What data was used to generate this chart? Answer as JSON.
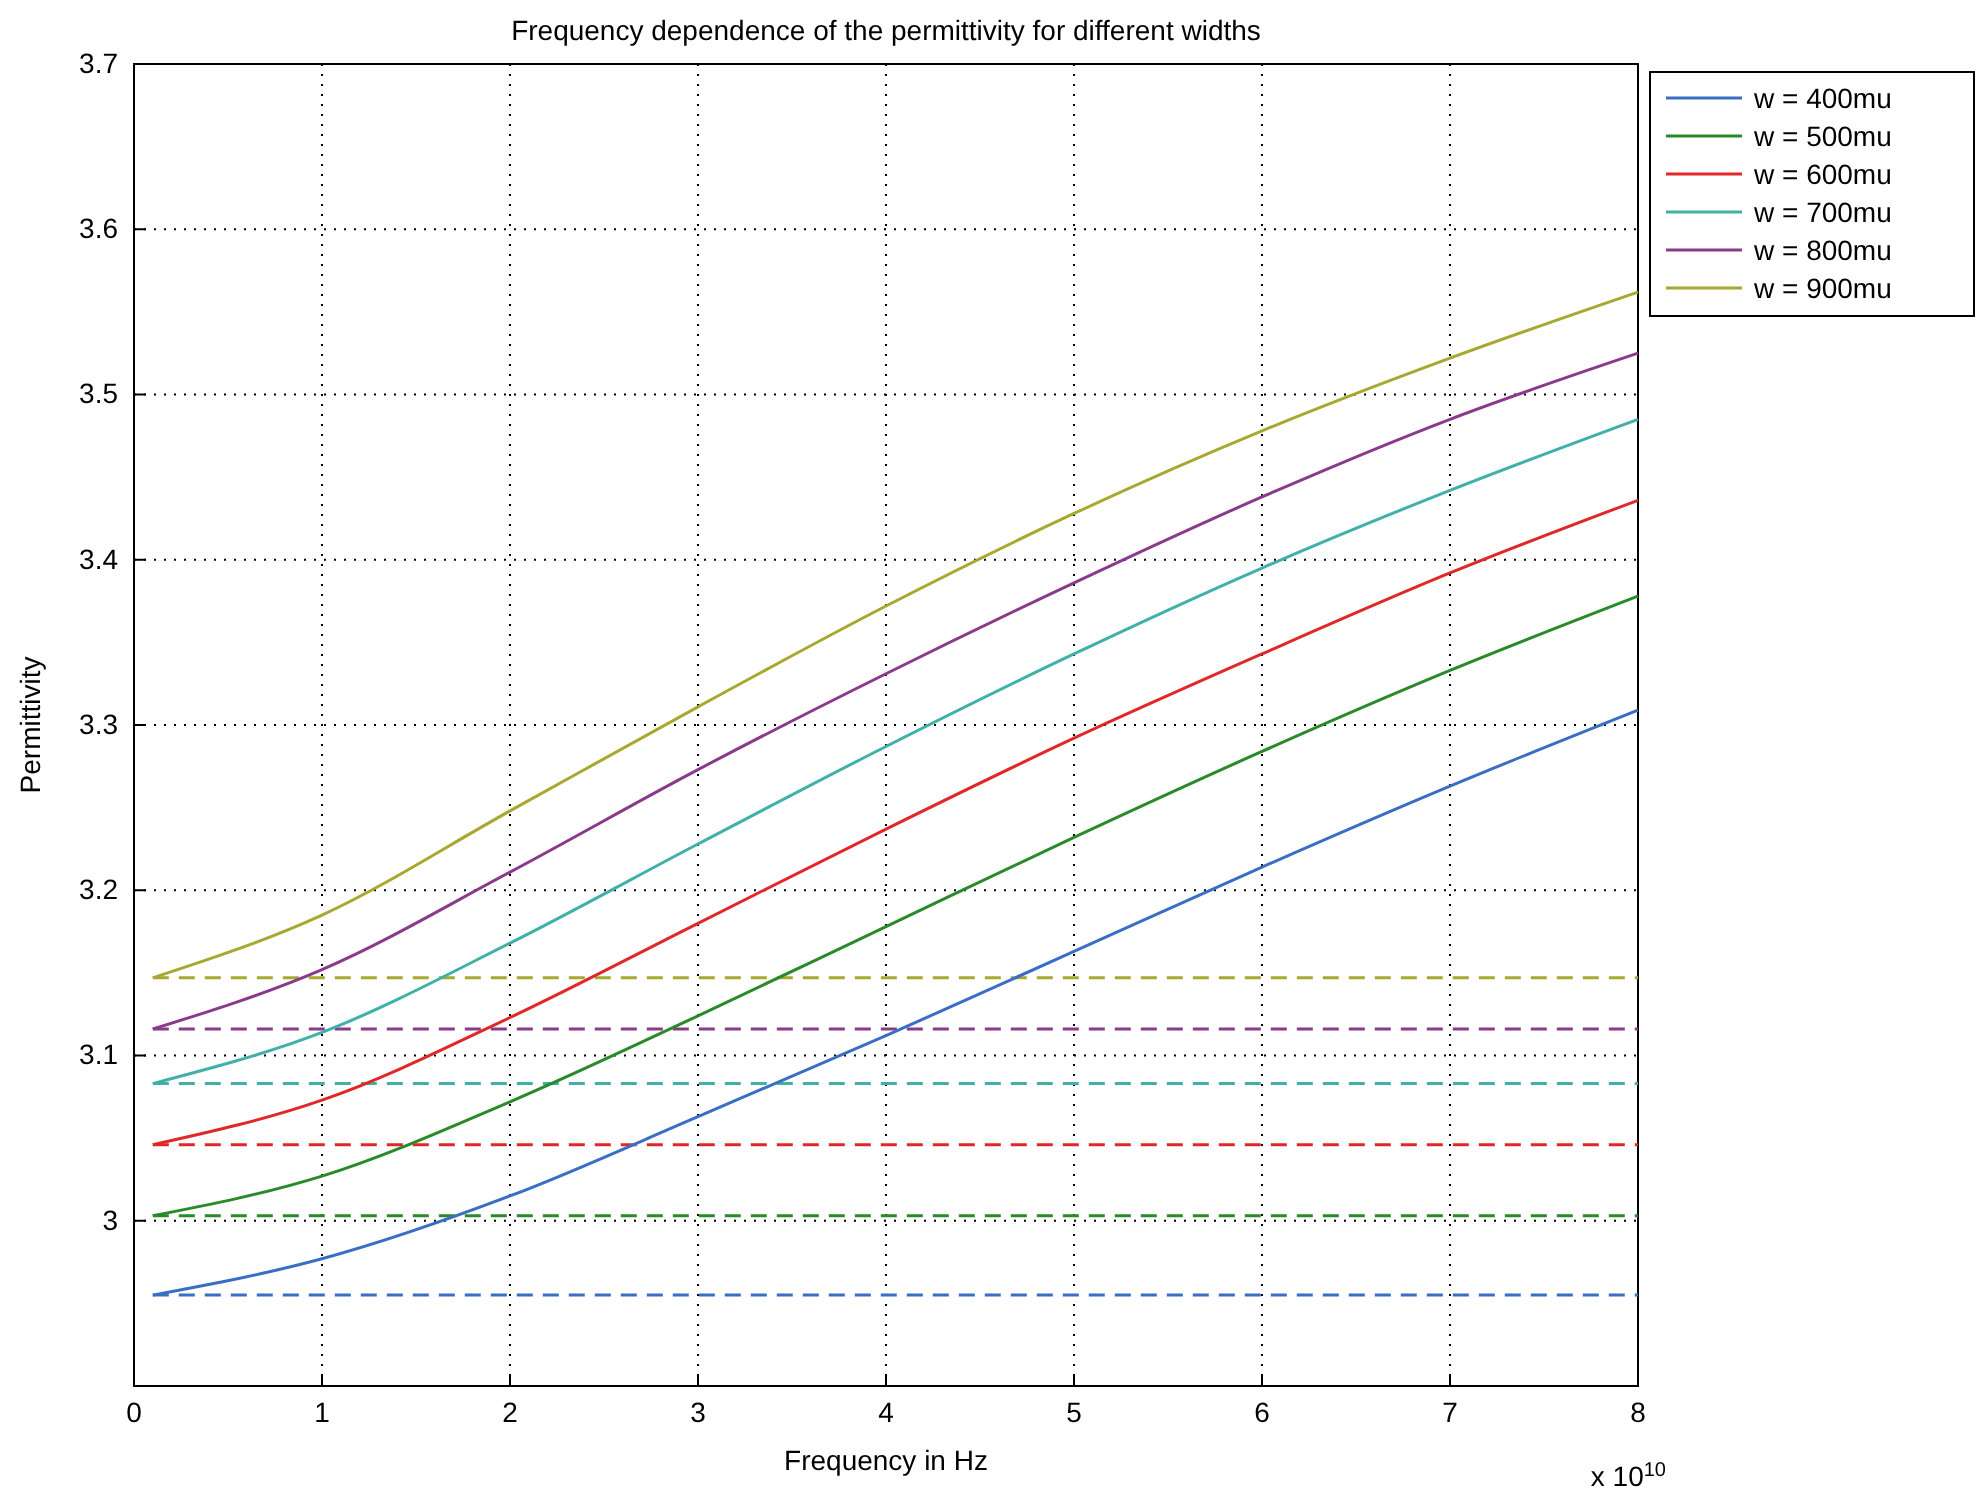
{
  "chart_data": {
    "type": "line",
    "title": "Frequency dependence of the permittivity for different widths",
    "xlabel": "Frequency in Hz",
    "ylabel": "Permittivity",
    "x": [
      0.1,
      1,
      2,
      3,
      4,
      5,
      6,
      7,
      8
    ],
    "series": [
      {
        "name": "w = 400mu",
        "color": "#3a6ec4",
        "values": [
          2.955,
          2.977,
          3.015,
          3.063,
          3.112,
          3.163,
          3.214,
          3.263,
          3.309
        ]
      },
      {
        "name": "w = 500mu",
        "color": "#2a8a2a",
        "values": [
          3.003,
          3.027,
          3.072,
          3.124,
          3.178,
          3.232,
          3.284,
          3.333,
          3.378
        ]
      },
      {
        "name": "w = 600mu",
        "color": "#e02828",
        "values": [
          3.046,
          3.073,
          3.123,
          3.18,
          3.237,
          3.292,
          3.343,
          3.392,
          3.436
        ]
      },
      {
        "name": "w = 700mu",
        "color": "#40b0a8",
        "values": [
          3.083,
          3.114,
          3.168,
          3.228,
          3.287,
          3.343,
          3.395,
          3.442,
          3.485
        ]
      },
      {
        "name": "w = 800mu",
        "color": "#8a3a8a",
        "values": [
          3.116,
          3.152,
          3.211,
          3.273,
          3.331,
          3.386,
          3.438,
          3.485,
          3.525
        ]
      },
      {
        "name": "w = 900mu",
        "color": "#a8a830",
        "values": [
          3.147,
          3.185,
          3.248,
          3.311,
          3.372,
          3.428,
          3.478,
          3.522,
          3.562
        ]
      }
    ],
    "ref_lines": [
      {
        "axis": "y",
        "value": 2.955,
        "color": "#3a6ec4",
        "line_style": "dashed"
      },
      {
        "axis": "y",
        "value": 3.003,
        "color": "#2a8a2a",
        "line_style": "dashed"
      },
      {
        "axis": "y",
        "value": 3.046,
        "color": "#e02828",
        "line_style": "dashed"
      },
      {
        "axis": "y",
        "value": 3.083,
        "color": "#40b0a8",
        "line_style": "dashed"
      },
      {
        "axis": "y",
        "value": 3.116,
        "color": "#8a3a8a",
        "line_style": "dashed"
      },
      {
        "axis": "y",
        "value": 3.147,
        "color": "#a8a830",
        "line_style": "dashed"
      }
    ],
    "annotations": [
      "x 10$^{10}$"
    ],
    "xlim": [
      0,
      8
    ],
    "xticks": [
      0,
      1,
      2,
      3,
      4,
      5,
      6,
      7,
      8
    ],
    "ylim": [
      2.9,
      3.7
    ],
    "yticks": [
      3,
      3.1,
      3.2,
      3.3,
      3.4,
      3.5,
      3.6,
      3.7
    ],
    "grid": true,
    "legend": "top right",
    "line_style": "solid",
    "marker": "none"
  }
}
